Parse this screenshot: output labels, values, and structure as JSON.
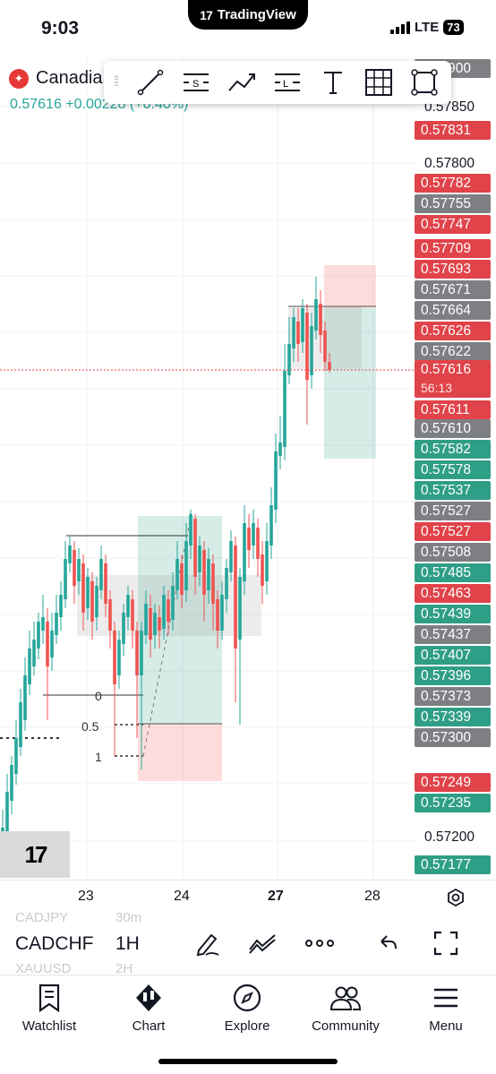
{
  "status_bar": {
    "time": "9:03",
    "app_pill": "TradingView",
    "app_pill_logo": "17",
    "network": "LTE",
    "battery": "73"
  },
  "symbol_header": {
    "name": "Canadia",
    "flag_icon": "canada-flag-icon",
    "price": "0.57616",
    "change": "+0.00228 (+0.40%)"
  },
  "drawing_toolbar": {
    "tools": [
      "trend-line-icon",
      "horizontal-ray-s-icon",
      "path-icon",
      "long-position-icon",
      "text-icon",
      "grid-icon",
      "rectangle-icon"
    ]
  },
  "price_axis": {
    "levels": [
      {
        "text": "0.57850",
        "type": "level"
      },
      {
        "text": "0.57800",
        "type": "level"
      },
      {
        "text": "0.57200",
        "type": "level"
      }
    ],
    "tags": [
      {
        "text": "0.57900",
        "color": "gray"
      },
      {
        "text": "0.57831",
        "color": "red"
      },
      {
        "text": "0.57782",
        "color": "red"
      },
      {
        "text": "0.57755",
        "color": "gray"
      },
      {
        "text": "0.57747",
        "color": "red"
      },
      {
        "text": "0.57709",
        "color": "red"
      },
      {
        "text": "0.57693",
        "color": "red"
      },
      {
        "text": "0.57671",
        "color": "gray"
      },
      {
        "text": "0.57664",
        "color": "gray"
      },
      {
        "text": "0.57626",
        "color": "red"
      },
      {
        "text": "0.57622",
        "color": "gray"
      },
      {
        "text": "0.57611",
        "color": "red"
      },
      {
        "text": "0.57610",
        "color": "gray"
      },
      {
        "text": "0.57582",
        "color": "green"
      },
      {
        "text": "0.57578",
        "color": "green"
      },
      {
        "text": "0.57537",
        "color": "green"
      },
      {
        "text": "0.57527",
        "color": "gray"
      },
      {
        "text": "0.57527",
        "color": "red"
      },
      {
        "text": "0.57508",
        "color": "gray"
      },
      {
        "text": "0.57485",
        "color": "green"
      },
      {
        "text": "0.57463",
        "color": "red"
      },
      {
        "text": "0.57439",
        "color": "green"
      },
      {
        "text": "0.57437",
        "color": "gray"
      },
      {
        "text": "0.57407",
        "color": "green"
      },
      {
        "text": "0.57396",
        "color": "green"
      },
      {
        "text": "0.57373",
        "color": "gray"
      },
      {
        "text": "0.57339",
        "color": "green"
      },
      {
        "text": "0.57300",
        "color": "gray"
      },
      {
        "text": "0.57249",
        "color": "red"
      },
      {
        "text": "0.57235",
        "color": "green"
      },
      {
        "text": "0.57177",
        "color": "green"
      }
    ],
    "current_price": "0.57616",
    "countdown": "56:13"
  },
  "fib_labels": [
    "0",
    "0.5",
    "1"
  ],
  "time_axis": {
    "labels": [
      "23",
      "24",
      "27",
      "28"
    ],
    "bold_label": "27",
    "settings_icon": "gear-icon"
  },
  "bottom_toolbar": {
    "ghost_above_symbol": "CADJPY",
    "ghost_above_tf": "30m",
    "symbol": "CADCHF",
    "timeframe": "1H",
    "ghost_below_symbol": "XAUUSD",
    "ghost_below_tf": "2H",
    "icons": [
      "pencil-icon",
      "indicators-icon",
      "more-icon",
      "undo-icon",
      "fullscreen-icon"
    ]
  },
  "nav": [
    {
      "label": "Watchlist",
      "icon": "watchlist-icon"
    },
    {
      "label": "Chart",
      "icon": "chart-icon"
    },
    {
      "label": "Explore",
      "icon": "compass-icon"
    },
    {
      "label": "Community",
      "icon": "community-icon"
    },
    {
      "label": "Menu",
      "icon": "menu-icon"
    }
  ],
  "colors": {
    "up": "#26a69a",
    "down": "#ef5350",
    "tag_red": "#e04349",
    "tag_green": "#2f9e86",
    "tag_gray": "#7d7f83"
  }
}
